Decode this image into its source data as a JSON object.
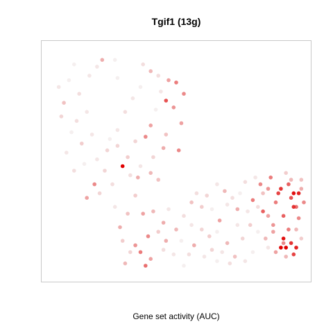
{
  "chart_data": {
    "type": "scatter",
    "title": "Tgif1 (13g)",
    "xlabel": "Gene set activity (AUC)",
    "ylabel": "",
    "color_scale": {
      "low": "#eeeeee",
      "high": "#e00000"
    },
    "axes_shown": false,
    "grid": false,
    "legend": "none",
    "series": [
      {
        "points": [
          [
            0.1,
            0.93,
            0.05
          ],
          [
            0.21,
            0.95,
            0.4
          ],
          [
            0.26,
            0.95,
            0.05
          ],
          [
            0.19,
            0.92,
            0.1
          ],
          [
            0.37,
            0.93,
            0.15
          ],
          [
            0.4,
            0.9,
            0.35
          ],
          [
            0.47,
            0.86,
            0.45
          ],
          [
            0.5,
            0.85,
            0.6
          ],
          [
            0.53,
            0.8,
            0.55
          ],
          [
            0.46,
            0.77,
            0.75
          ],
          [
            0.49,
            0.74,
            0.5
          ],
          [
            0.52,
            0.67,
            0.45
          ],
          [
            0.46,
            0.62,
            0.3
          ],
          [
            0.51,
            0.55,
            0.55
          ],
          [
            0.45,
            0.56,
            0.4
          ],
          [
            0.4,
            0.66,
            0.45
          ],
          [
            0.38,
            0.61,
            0.55
          ],
          [
            0.34,
            0.59,
            0.2
          ],
          [
            0.06,
            0.76,
            0.3
          ],
          [
            0.05,
            0.7,
            0.2
          ],
          [
            0.12,
            0.8,
            0.15
          ],
          [
            0.15,
            0.72,
            0.1
          ],
          [
            0.09,
            0.63,
            0.05
          ],
          [
            0.17,
            0.62,
            0.1
          ],
          [
            0.23,
            0.55,
            0.2
          ],
          [
            0.31,
            0.52,
            0.25
          ],
          [
            0.29,
            0.48,
            1.0
          ],
          [
            0.35,
            0.43,
            0.4
          ],
          [
            0.4,
            0.45,
            0.35
          ],
          [
            0.43,
            0.42,
            0.3
          ],
          [
            0.18,
            0.4,
            0.55
          ],
          [
            0.15,
            0.34,
            0.45
          ],
          [
            0.2,
            0.36,
            0.2
          ],
          [
            0.26,
            0.3,
            0.1
          ],
          [
            0.34,
            0.35,
            0.25
          ],
          [
            0.37,
            0.27,
            0.45
          ],
          [
            0.41,
            0.28,
            0.35
          ],
          [
            0.45,
            0.23,
            0.4
          ],
          [
            0.39,
            0.17,
            0.55
          ],
          [
            0.34,
            0.13,
            0.5
          ],
          [
            0.36,
            0.1,
            0.6
          ],
          [
            0.4,
            0.07,
            0.45
          ],
          [
            0.38,
            0.04,
            0.65
          ],
          [
            0.46,
            0.15,
            0.4
          ],
          [
            0.5,
            0.2,
            0.35
          ],
          [
            0.53,
            0.26,
            0.15
          ],
          [
            0.6,
            0.3,
            0.25
          ],
          [
            0.62,
            0.35,
            0.2
          ],
          [
            0.66,
            0.4,
            0.1
          ],
          [
            0.69,
            0.37,
            0.35
          ],
          [
            0.72,
            0.34,
            0.15
          ],
          [
            0.74,
            0.29,
            0.4
          ],
          [
            0.67,
            0.24,
            0.45
          ],
          [
            0.63,
            0.17,
            0.25
          ],
          [
            0.7,
            0.14,
            0.35
          ],
          [
            0.73,
            0.08,
            0.3
          ],
          [
            0.76,
            0.16,
            0.2
          ],
          [
            0.79,
            0.22,
            0.25
          ],
          [
            0.82,
            0.3,
            0.15
          ],
          [
            0.84,
            0.36,
            0.3
          ],
          [
            0.81,
            0.43,
            0.1
          ],
          [
            0.77,
            0.41,
            0.15
          ],
          [
            0.86,
            0.26,
            0.45
          ],
          [
            0.88,
            0.22,
            0.5
          ],
          [
            0.85,
            0.16,
            0.35
          ],
          [
            0.89,
            0.1,
            0.45
          ],
          [
            0.92,
            0.14,
            0.55
          ],
          [
            0.94,
            0.2,
            0.6
          ],
          [
            0.92,
            0.26,
            0.7
          ],
          [
            0.89,
            0.32,
            0.6
          ],
          [
            0.91,
            0.38,
            0.85
          ],
          [
            0.95,
            0.34,
            0.75
          ],
          [
            0.97,
            0.3,
            0.65
          ],
          [
            0.98,
            0.25,
            0.55
          ],
          [
            0.95,
            0.42,
            0.35
          ],
          [
            0.93,
            0.45,
            0.25
          ],
          [
            0.99,
            0.38,
            0.4
          ],
          [
            1.0,
            0.32,
            0.55
          ],
          [
            0.97,
            0.2,
            0.35
          ],
          [
            0.99,
            0.16,
            0.25
          ],
          [
            0.93,
            0.08,
            0.35
          ],
          [
            0.87,
            0.43,
            0.6
          ],
          [
            0.96,
            0.36,
            0.95
          ],
          [
            0.98,
            0.36,
            0.9
          ],
          [
            0.9,
            0.36,
            0.8
          ],
          [
            0.94,
            0.4,
            0.7
          ],
          [
            0.96,
            0.3,
            0.85
          ],
          [
            0.92,
            0.16,
            0.95
          ],
          [
            0.95,
            0.14,
            0.85
          ],
          [
            0.97,
            0.12,
            0.9
          ],
          [
            0.91,
            0.12,
            1.0
          ],
          [
            0.93,
            0.12,
            1.0
          ],
          [
            0.96,
            0.09,
            0.8
          ],
          [
            0.99,
            0.42,
            0.3
          ],
          [
            0.86,
            0.38,
            0.5
          ],
          [
            0.83,
            0.4,
            0.55
          ],
          [
            0.8,
            0.33,
            0.6
          ],
          [
            0.84,
            0.28,
            0.7
          ],
          [
            0.88,
            0.19,
            0.45
          ],
          [
            0.58,
            0.36,
            0.15
          ],
          [
            0.56,
            0.32,
            0.3
          ],
          [
            0.6,
            0.2,
            0.2
          ],
          [
            0.57,
            0.13,
            0.4
          ],
          [
            0.55,
            0.09,
            0.15
          ],
          [
            0.64,
            0.11,
            0.2
          ],
          [
            0.68,
            0.1,
            0.1
          ],
          [
            0.71,
            0.05,
            0.15
          ],
          [
            0.49,
            0.09,
            0.1
          ],
          [
            0.45,
            0.11,
            0.15
          ],
          [
            0.43,
            0.19,
            0.25
          ],
          [
            0.47,
            0.29,
            0.1
          ],
          [
            0.31,
            0.27,
            0.3
          ],
          [
            0.28,
            0.21,
            0.4
          ],
          [
            0.29,
            0.15,
            0.25
          ],
          [
            0.32,
            0.1,
            0.2
          ],
          [
            0.3,
            0.05,
            0.35
          ],
          [
            0.25,
            0.4,
            0.15
          ],
          [
            0.22,
            0.46,
            0.2
          ],
          [
            0.27,
            0.64,
            0.1
          ],
          [
            0.3,
            0.72,
            0.15
          ],
          [
            0.33,
            0.78,
            0.1
          ],
          [
            0.36,
            0.83,
            0.05
          ],
          [
            0.43,
            0.88,
            0.15
          ],
          [
            0.27,
            0.87,
            0.05
          ],
          [
            0.16,
            0.88,
            0.1
          ],
          [
            0.08,
            0.86,
            0.05
          ],
          [
            0.04,
            0.83,
            0.1
          ],
          [
            0.11,
            0.68,
            0.15
          ],
          [
            0.13,
            0.58,
            0.25
          ],
          [
            0.07,
            0.54,
            0.1
          ],
          [
            0.1,
            0.46,
            0.15
          ],
          [
            0.14,
            0.49,
            0.05
          ],
          [
            0.19,
            0.51,
            0.1
          ],
          [
            0.24,
            0.6,
            0.05
          ],
          [
            0.27,
            0.57,
            0.2
          ],
          [
            0.42,
            0.73,
            0.05
          ],
          [
            0.44,
            0.81,
            0.1
          ],
          [
            0.41,
            0.52,
            0.2
          ],
          [
            0.36,
            0.48,
            0.1
          ],
          [
            0.32,
            0.44,
            0.15
          ],
          [
            0.64,
            0.29,
            0.05
          ],
          [
            0.7,
            0.31,
            0.1
          ],
          [
            0.75,
            0.36,
            0.05
          ],
          [
            0.78,
            0.28,
            0.1
          ],
          [
            0.66,
            0.19,
            0.05
          ],
          [
            0.74,
            0.22,
            0.1
          ],
          [
            0.82,
            0.19,
            0.05
          ],
          [
            0.86,
            0.12,
            0.1
          ],
          [
            0.8,
            0.1,
            0.05
          ],
          [
            0.77,
            0.06,
            0.1
          ],
          [
            0.66,
            0.06,
            0.05
          ],
          [
            0.61,
            0.08,
            0.1
          ],
          [
            0.52,
            0.15,
            0.05
          ],
          [
            0.56,
            0.22,
            0.1
          ],
          [
            0.53,
            0.04,
            0.05
          ]
        ]
      }
    ]
  }
}
